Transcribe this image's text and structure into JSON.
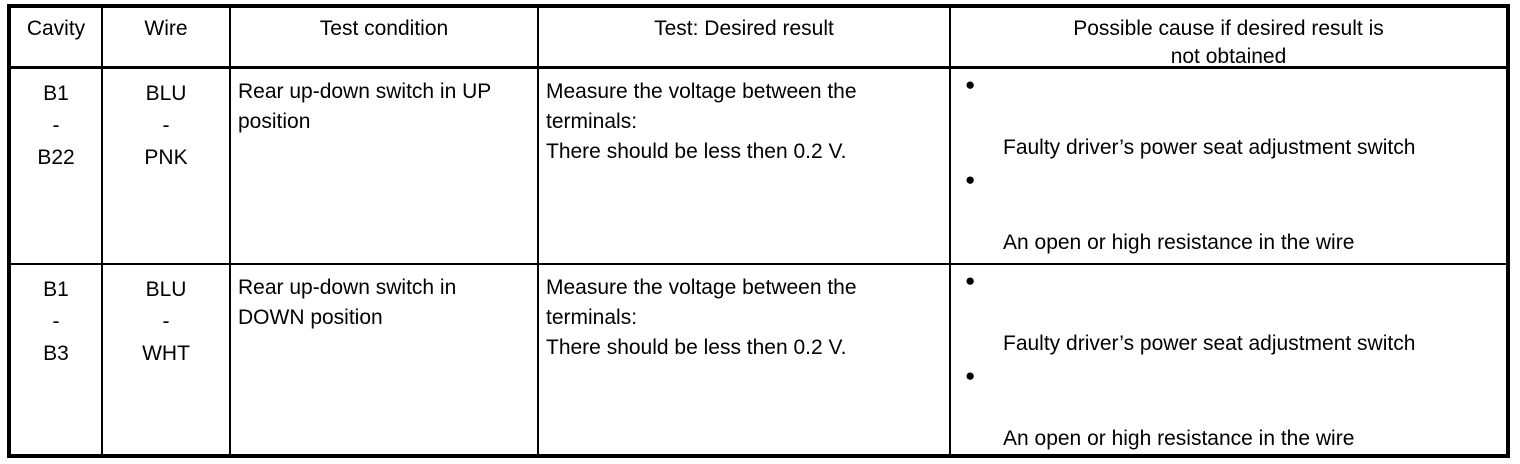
{
  "table": {
    "headers": [
      {
        "lines": [
          "Cavity"
        ]
      },
      {
        "lines": [
          "Wire"
        ]
      },
      {
        "lines": [
          "Test condition"
        ]
      },
      {
        "lines": [
          "Test: Desired result"
        ]
      },
      {
        "lines": [
          "Possible cause if desired result is",
          "not obtained"
        ]
      }
    ],
    "rows": [
      {
        "cavity": [
          "B1",
          "-",
          "B22"
        ],
        "wire": [
          "BLU",
          "-",
          "PNK"
        ],
        "condition": [
          "Rear up-down switch in UP",
          "position"
        ],
        "result": [
          "Measure the voltage between the",
          "terminals:",
          "There should be less then 0.2 V."
        ],
        "causes": [
          "Faulty driver’s power seat adjustment switch",
          "An open or high resistance in the wire"
        ],
        "bullet_glyph": "●"
      },
      {
        "cavity": [
          "B1",
          "-",
          "B3"
        ],
        "wire": [
          "BLU",
          "-",
          "WHT"
        ],
        "condition": [
          "Rear up-down switch in",
          "DOWN position"
        ],
        "result": [
          "Measure the voltage between the",
          "terminals:",
          "There should be less then 0.2 V."
        ],
        "causes": [
          "Faulty driver’s power seat adjustment switch",
          "An open or high resistance in the wire"
        ],
        "bullet_glyph": "●"
      }
    ],
    "colors": {
      "border": "#000000",
      "background": "#ffffff",
      "text": "#000000"
    }
  }
}
